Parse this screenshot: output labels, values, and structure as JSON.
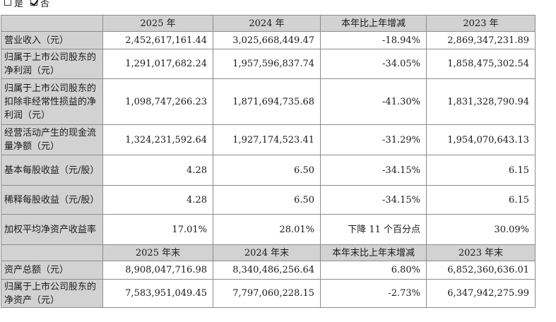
{
  "checkbox_line": {
    "yes": {
      "label": "是",
      "checked": false
    },
    "no": {
      "label": "否",
      "checked": true
    }
  },
  "table": {
    "header": [
      "",
      "2025 年",
      "2024 年",
      "本年比上年增减",
      "2023 年"
    ],
    "rows": [
      {
        "label": "营业收入（元）",
        "v2025": "2,452,617,161.44",
        "v2024": "3,025,668,449.47",
        "change": "-18.94%",
        "v2023": "2,869,347,231.89"
      },
      {
        "label": "归属于上市公司股东的净利润（元）",
        "v2025": "1,291,017,682.24",
        "v2024": "1,957,596,837.74",
        "change": "-34.05%",
        "v2023": "1,858,475,302.54"
      },
      {
        "label": "归属于上市公司股东的扣除非经常性损益的净利润（元）",
        "v2025": "1,098,747,266.23",
        "v2024": "1,871,694,735.68",
        "change": "-41.30%",
        "v2023": "1,831,328,790.94"
      },
      {
        "label": "经营活动产生的现金流量净额（元）",
        "v2025": "1,324,231,592.64",
        "v2024": "1,927,174,523.41",
        "change": "-31.29%",
        "v2023": "1,954,070,643.13"
      },
      {
        "label": "基本每股收益（元/股）",
        "v2025": "4.28",
        "v2024": "6.50",
        "change": "-34.15%",
        "v2023": "6.15"
      },
      {
        "label": "稀释每股收益（元/股）",
        "v2025": "4.28",
        "v2024": "6.50",
        "change": "-34.15%",
        "v2023": "6.15"
      },
      {
        "label": "加权平均净资产收益率",
        "v2025": "17.01%",
        "v2024": "28.01%",
        "change": "下降 11 个百分点",
        "v2023": "30.09%"
      }
    ],
    "header2": [
      "",
      "2025 年末",
      "2024 年末",
      "本年末比上年末增减",
      "2023 年末"
    ],
    "rows2": [
      {
        "label": "资产总额（元）",
        "v2025": "8,908,047,716.98",
        "v2024": "8,340,486,256.64",
        "change": "6.80%",
        "v2023": "6,852,360,636.01"
      },
      {
        "label": "归属于上市公司股东的净资产（元）",
        "v2025": "7,583,951,049.45",
        "v2024": "7,797,060,228.15",
        "change": "-2.73%",
        "v2023": "6,347,942,275.99"
      }
    ]
  }
}
